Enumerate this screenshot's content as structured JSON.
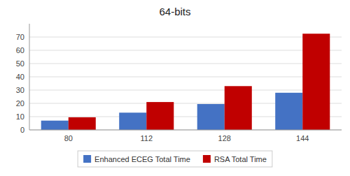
{
  "chart_data": {
    "type": "bar",
    "title": "64-bits",
    "categories": [
      "80",
      "112",
      "128",
      "144"
    ],
    "series": [
      {
        "name": "Enhanced ECEG Total Time",
        "color": "#4472C4",
        "values": [
          7,
          13,
          19.5,
          28
        ]
      },
      {
        "name": "RSA Total Time",
        "color": "#C00000",
        "values": [
          9.5,
          21,
          33,
          72.5
        ]
      }
    ],
    "ylim": [
      0,
      80
    ],
    "yticks": [
      0,
      10,
      20,
      30,
      40,
      50,
      60,
      70
    ],
    "grid": true,
    "legend": "bottom"
  }
}
